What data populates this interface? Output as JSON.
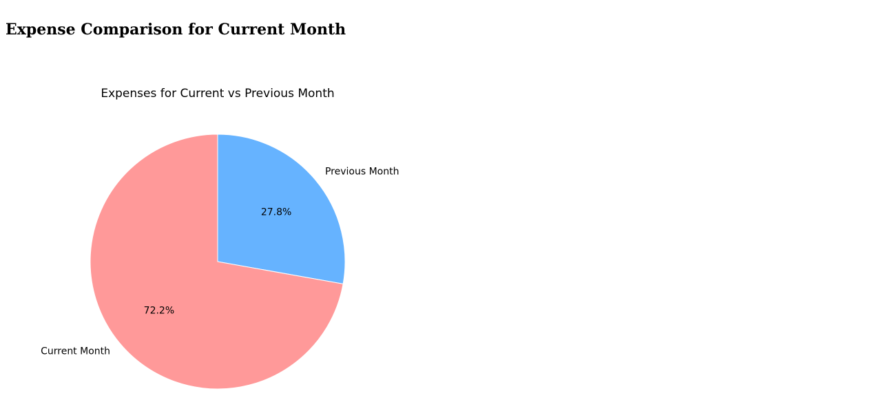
{
  "page": {
    "title": "Expense Comparison for Current Month"
  },
  "chart_data": {
    "type": "pie",
    "title": "Expenses for Current vs Previous Month",
    "start_angle_deg": 90,
    "direction": "clockwise",
    "legend": "none",
    "slices": [
      {
        "label": "Previous Month",
        "value": 27.8,
        "pct_label": "27.8%",
        "color": "#66b3ff"
      },
      {
        "label": "Current Month",
        "value": 72.2,
        "pct_label": "72.2%",
        "color": "#ff9999"
      }
    ]
  }
}
